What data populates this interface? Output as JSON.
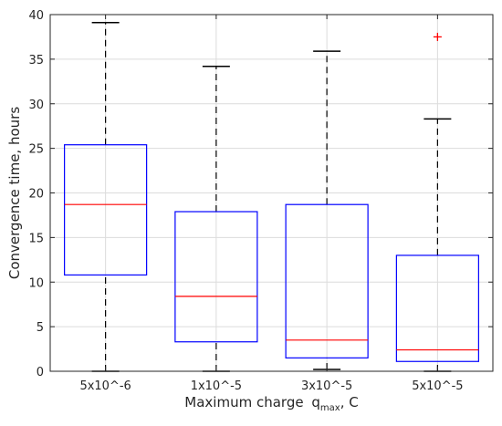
{
  "chart_data": {
    "type": "boxplot",
    "categories": [
      "5x10^-6",
      "1x10^-5",
      "3x10^-5",
      "5x10^-5"
    ],
    "boxes": [
      {
        "min": 0.0,
        "q1": 10.8,
        "median": 18.7,
        "q3": 25.4,
        "max": 39.1,
        "outliers": []
      },
      {
        "min": 0.0,
        "q1": 3.3,
        "median": 8.4,
        "q3": 17.9,
        "max": 34.2,
        "outliers": []
      },
      {
        "min": 0.2,
        "q1": 1.5,
        "median": 3.5,
        "q3": 18.7,
        "max": 35.9,
        "outliers": []
      },
      {
        "min": 0.0,
        "q1": 1.1,
        "median": 2.4,
        "q3": 13.0,
        "max": 28.3,
        "outliers": [
          37.5
        ]
      }
    ],
    "xlabel": "Maximum charge",
    "xlabel_symbol": "q",
    "xlabel_subscript": "max",
    "xlabel_unit": ", C",
    "ylabel": "Convergence time, hours",
    "ylim": [
      0,
      40
    ],
    "yticks": [
      0,
      5,
      10,
      15,
      20,
      25,
      30,
      35,
      40
    ],
    "grid": true,
    "colors": {
      "box": "#0000ff",
      "median": "#ff0000",
      "whisker": "#000000",
      "outlier": "#ff0000",
      "grid": "#dcdcdc",
      "axis": "#262626"
    }
  }
}
